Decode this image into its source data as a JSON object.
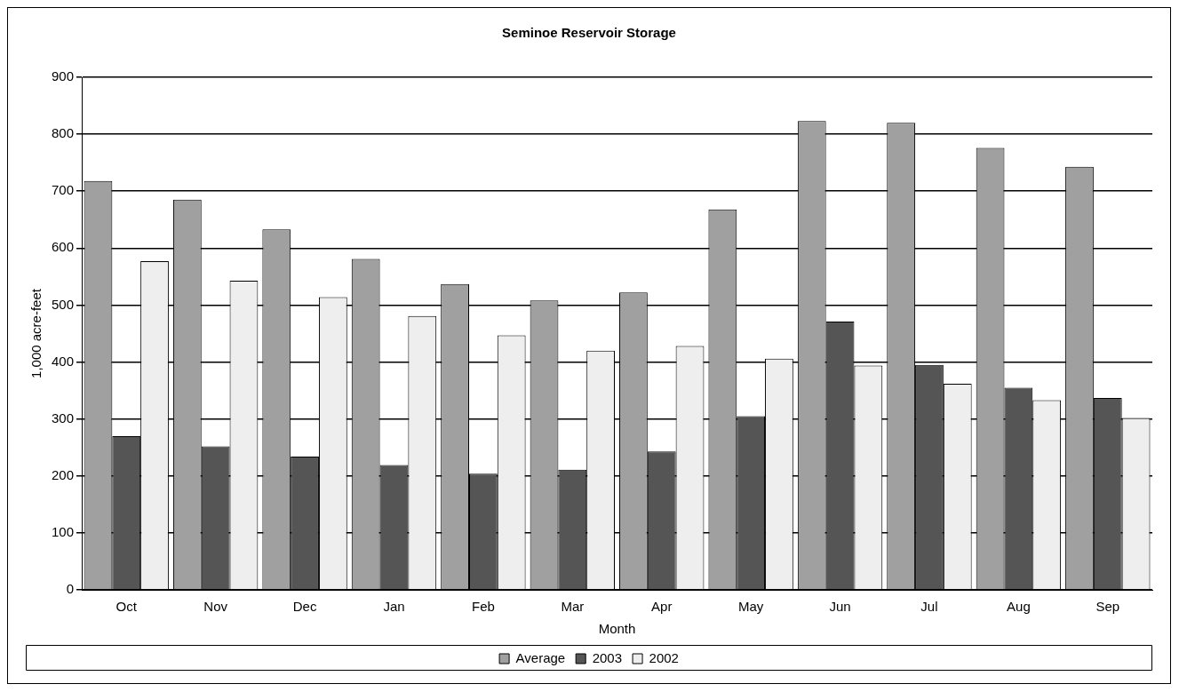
{
  "chart_data": {
    "type": "bar",
    "title": "Seminoe Reservoir Storage",
    "xlabel": "Month",
    "ylabel": "1,000 acre-feet",
    "categories": [
      "Oct",
      "Nov",
      "Dec",
      "Jan",
      "Feb",
      "Mar",
      "Apr",
      "May",
      "Jun",
      "Jul",
      "Aug",
      "Sep"
    ],
    "series": [
      {
        "name": "Average",
        "color": "#a0a0a0",
        "values": [
          718,
          685,
          633,
          581,
          537,
          508,
          522,
          668,
          823,
          820,
          776,
          743
        ]
      },
      {
        "name": "2003",
        "color": "#555555",
        "values": [
          270,
          252,
          234,
          219,
          204,
          211,
          243,
          305,
          471,
          395,
          355,
          337
        ]
      },
      {
        "name": "2002",
        "color": "#eeeeee",
        "values": [
          577,
          543,
          514,
          481,
          447,
          420,
          428,
          406,
          394,
          362,
          333,
          302
        ]
      }
    ],
    "ylim": [
      0,
      900
    ],
    "yticks": [
      0,
      100,
      200,
      300,
      400,
      500,
      600,
      700,
      800,
      900
    ],
    "grid": "y",
    "legend": "bottom"
  }
}
